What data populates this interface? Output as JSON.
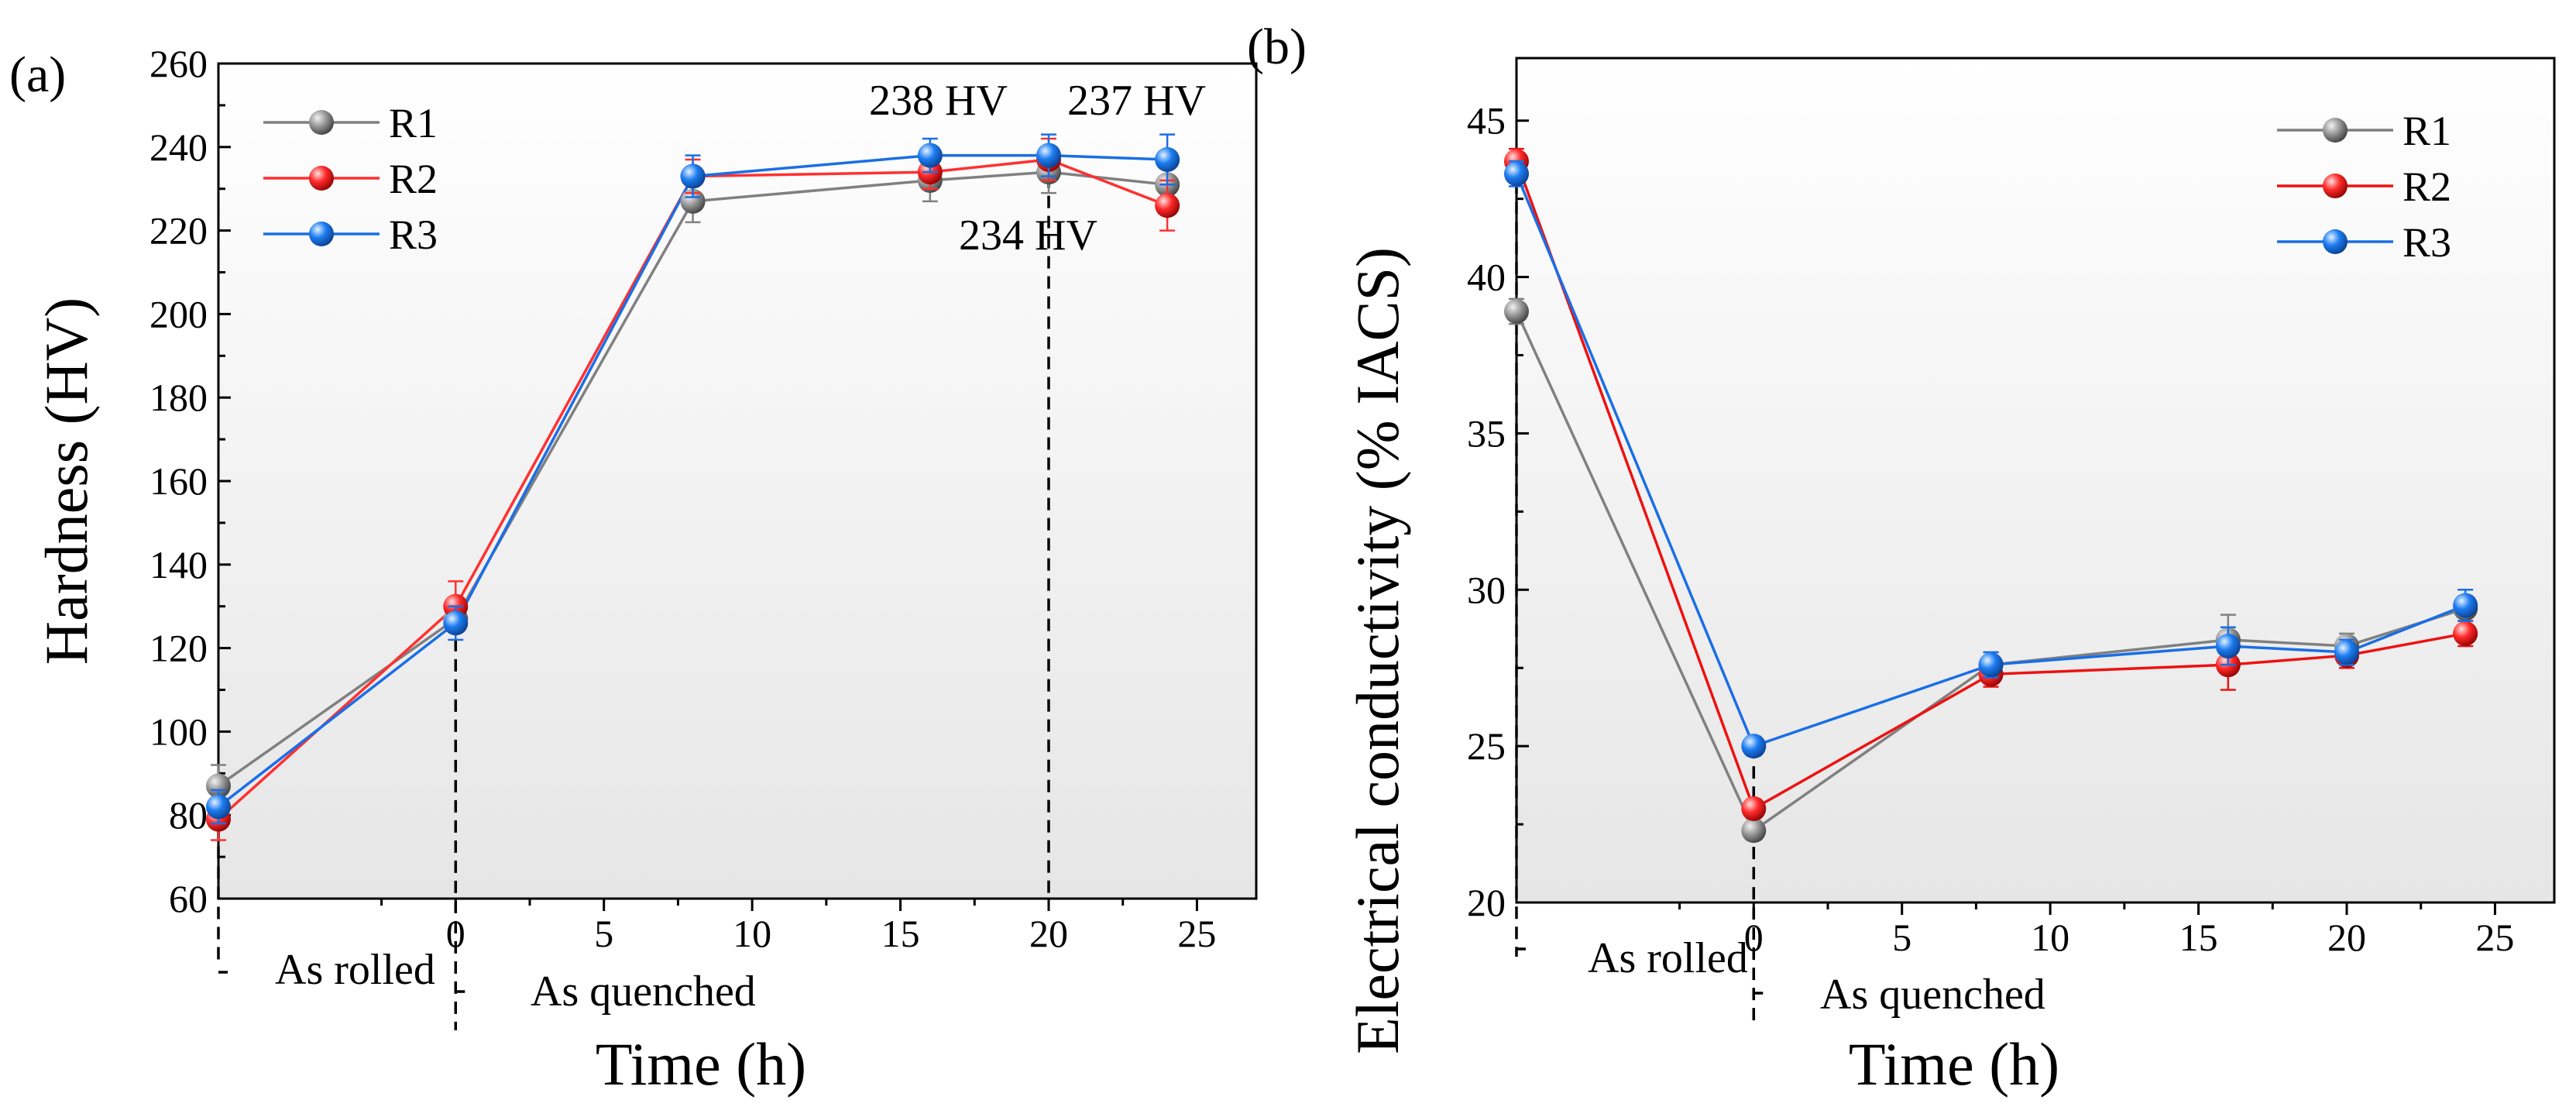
{
  "chart_data": [
    {
      "type": "line",
      "panel": "(a)",
      "xlabel": "Time (h)",
      "ylabel": "Hardness (HV)",
      "xlim": [
        -8,
        27
      ],
      "ylim": [
        60,
        260
      ],
      "xticks": [
        0,
        5,
        10,
        15,
        20,
        25
      ],
      "yticks": [
        60,
        80,
        100,
        120,
        140,
        160,
        180,
        200,
        220,
        240,
        260
      ],
      "x": [
        -8,
        0,
        8,
        16,
        20,
        24
      ],
      "legend_position": "top-left",
      "series": [
        {
          "name": "R1",
          "color": "#808080",
          "values": [
            87,
            127,
            227,
            232,
            234,
            231
          ],
          "errors": [
            5,
            3,
            5,
            5,
            5,
            4
          ]
        },
        {
          "name": "R2",
          "color": "#ff3030",
          "values": [
            79,
            130,
            233,
            234,
            237,
            226
          ],
          "errors": [
            5,
            6,
            4,
            4,
            5,
            6
          ]
        },
        {
          "name": "R3",
          "color": "#1a6ee6",
          "values": [
            82,
            126,
            233,
            238,
            238,
            237
          ],
          "errors": [
            4,
            4,
            5,
            4,
            5,
            6
          ]
        }
      ],
      "annotations": [
        {
          "text": "238 HV",
          "color": "#1515e0"
        },
        {
          "text": "237 HV",
          "color": "#ee1111"
        },
        {
          "text": "234 HV",
          "color": "#000000"
        }
      ],
      "markers": {
        "as_rolled": "As rolled",
        "as_quenched": "As quenched"
      }
    },
    {
      "type": "line",
      "panel": "(b)",
      "xlabel": "Time (h)",
      "ylabel": "Electrical conductivity  (% IACS)",
      "xlim": [
        -8,
        27
      ],
      "ylim": [
        20,
        47
      ],
      "xticks": [
        0,
        5,
        10,
        15,
        20,
        25
      ],
      "yticks": [
        20,
        25,
        30,
        35,
        40,
        45
      ],
      "x": [
        -8,
        0,
        8,
        16,
        20,
        24
      ],
      "legend_position": "top-right",
      "series": [
        {
          "name": "R1",
          "color": "#808080",
          "values": [
            38.9,
            22.3,
            27.6,
            28.4,
            28.2,
            29.4
          ],
          "errors": [
            0.4,
            0.3,
            0.4,
            0.8,
            0.4,
            0.4
          ]
        },
        {
          "name": "R2",
          "color": "#ee1111",
          "values": [
            43.7,
            23.0,
            27.3,
            27.6,
            27.9,
            28.6
          ],
          "errors": [
            0.4,
            0.3,
            0.4,
            0.8,
            0.4,
            0.4
          ]
        },
        {
          "name": "R3",
          "color": "#1a6ee6",
          "values": [
            43.3,
            25.0,
            27.6,
            28.2,
            28.0,
            29.5
          ],
          "errors": [
            0.4,
            0.3,
            0.4,
            0.6,
            0.4,
            0.5
          ]
        }
      ],
      "markers": {
        "as_rolled": "As rolled",
        "as_quenched": "As quenched"
      }
    }
  ]
}
